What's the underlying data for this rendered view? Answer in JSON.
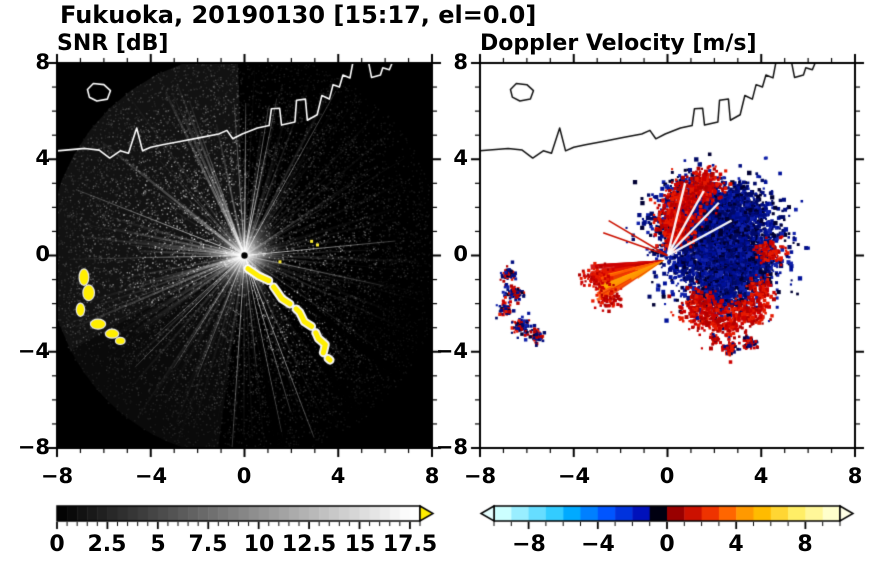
{
  "title": "Fukuoka, 20190130 [15:17, el=0.0]",
  "axes": {
    "x_tick_labels": [
      "−8",
      "−4",
      "0",
      "4",
      "8"
    ],
    "y_tick_labels": [
      "8",
      "4",
      "0",
      "−4",
      "−8"
    ]
  },
  "chart_data": [
    {
      "id": "snr",
      "type": "heatmap",
      "title": "SNR [dB]",
      "xlabel": "",
      "ylabel": "",
      "xlim": [
        -8,
        8
      ],
      "ylim": [
        -8,
        8
      ],
      "x_ticks": [
        -8,
        -4,
        0,
        4,
        8
      ],
      "y_ticks": [
        -8,
        -4,
        0,
        4,
        8
      ],
      "minor_tick_step": 1,
      "units": "dB",
      "description": "Radar SNR PPI scan on black background; radar at origin with bright radial streaks (brightest toward NW sector); saturated yellow echoes along an arc from (0.2,-0.6) to (3.6,-4.3) and small patches near x=-7..-5.2, y=-0.9..-3.6; white coastline overlay across the top of the map",
      "colorbar": {
        "min": 0,
        "max": 18,
        "tick_step": 0.5,
        "label_values": [
          0,
          2.5,
          5,
          7.5,
          10,
          12.5,
          15,
          17.5
        ],
        "labels": [
          "0",
          "2.5",
          "5",
          "7.5",
          "10",
          "12.5",
          "15",
          "17.5"
        ],
        "gradient": [
          "#000000",
          "#ffffff"
        ],
        "over_arrow_color": "#ffee00"
      },
      "render": {
        "background": "#000000",
        "noise_count": 20000,
        "ray_count": 170,
        "bright_sector_deg": [
          92,
          208
        ],
        "dark_wedges_deg": [
          [
            -36,
            -39
          ],
          [
            -52,
            -55
          ],
          [
            -78,
            -81
          ],
          [
            322,
            324
          ]
        ],
        "dim_sector_deg": [
          -33,
          -8
        ],
        "yellow_patches": [
          [
            -6.85,
            -0.9,
            0.18,
            0.32
          ],
          [
            -6.65,
            -1.55,
            0.22,
            0.3
          ],
          [
            -7.0,
            -2.25,
            0.15,
            0.25
          ],
          [
            -6.25,
            -2.85,
            0.3,
            0.18
          ],
          [
            -5.65,
            -3.25,
            0.26,
            0.16
          ],
          [
            -5.3,
            -3.55,
            0.18,
            0.12
          ]
        ],
        "yellow_arc": [
          [
            0.15,
            -0.55
          ],
          [
            0.6,
            -0.85
          ],
          [
            1.05,
            -1.05
          ],
          [
            1.35,
            -1.45
          ],
          [
            1.6,
            -1.8
          ],
          [
            2.0,
            -2.05
          ],
          [
            2.35,
            -2.35
          ],
          [
            2.55,
            -2.75
          ],
          [
            2.95,
            -3.0
          ],
          [
            3.15,
            -3.45
          ],
          [
            3.45,
            -3.7
          ],
          [
            3.35,
            -4.1
          ],
          [
            3.65,
            -4.35
          ]
        ],
        "yellow_flecks": [
          [
            2.8,
            0.65
          ],
          [
            3.05,
            0.5
          ],
          [
            1.45,
            -0.2
          ]
        ]
      }
    },
    {
      "id": "doppler",
      "type": "heatmap",
      "title": "Doppler Velocity [m/s]",
      "xlabel": "",
      "ylabel": "",
      "xlim": [
        -8,
        8
      ],
      "ylim": [
        -8,
        8
      ],
      "x_ticks": [
        -8,
        -4,
        0,
        4,
        8
      ],
      "y_ticks": [
        -8,
        -4,
        0,
        4,
        8
      ],
      "minor_tick_step": 1,
      "units": "m/s",
      "description": "Doppler velocity PPI on white background; negative (dark navy blue) echoes east-northeast of radar with red positive fringes; orange-red positive fan west-southwest of radar reaching x=-3.5; small red/blue patches near x=-7 and along y=-3.5; black coastline overlay",
      "colorbar": {
        "min": -10,
        "max": 10,
        "tick_step": 1,
        "label_values": [
          -8,
          -4,
          0,
          4,
          8
        ],
        "labels": [
          "−8",
          "−4",
          "0",
          "4",
          "8"
        ],
        "segment_colors": [
          "#ccffff",
          "#99eeff",
          "#66ddff",
          "#33ccff",
          "#00aaff",
          "#0080ff",
          "#0055ff",
          "#0033dd",
          "#0011bb",
          "#000011",
          "#990000",
          "#cc1100",
          "#ee3300",
          "#ff6600",
          "#ff9900",
          "#ffbb00",
          "#ffd633",
          "#ffee66",
          "#fff799",
          "#ffffcc"
        ],
        "under_arrow_color": "#e6ffff",
        "over_arrow_color": "#ffffe6"
      },
      "render": {
        "background": "#ffffff",
        "navy_palette": [
          "#000d80",
          "#001199",
          "#000a66",
          "#000033",
          "#1122aa"
        ],
        "red_palette": [
          "#cc0000",
          "#b30000",
          "#e61a00"
        ],
        "orange_palette": [
          "#ff3300",
          "#ff5500",
          "#ff7700",
          "#ff9900",
          "#e63900",
          "#ffaa00"
        ],
        "navy_clusters": [
          [
            2.1,
            0.7,
            1.25,
            2600
          ],
          [
            1.2,
            2.0,
            0.75,
            700
          ],
          [
            3.1,
            -0.4,
            0.7,
            600
          ],
          [
            2.1,
            -1.5,
            0.6,
            420
          ],
          [
            0.9,
            1.1,
            0.5,
            350
          ],
          [
            2.9,
            1.9,
            0.6,
            420
          ]
        ],
        "navy_speckle": [
          2.1,
          0.4,
          2.6,
          260
        ],
        "red_clusters": [
          [
            0.35,
            1.5,
            0.45,
            260
          ],
          [
            0.7,
            2.4,
            0.45,
            230
          ],
          [
            1.5,
            3.0,
            0.4,
            190
          ],
          [
            0.2,
            0.9,
            0.3,
            140
          ],
          [
            1.3,
            -2.2,
            0.45,
            210
          ],
          [
            2.4,
            -2.7,
            0.4,
            170
          ],
          [
            3.5,
            -2.3,
            0.35,
            150
          ],
          [
            4.3,
            0.2,
            0.3,
            90
          ],
          [
            3.9,
            -1.4,
            0.3,
            90
          ]
        ],
        "fan": {
          "origin": [
            -0.15,
            -0.2
          ],
          "angle_deg": [
            184,
            214
          ],
          "length": [
            1.1,
            3.4
          ],
          "count": 64
        },
        "fan_fringe": [
          [
            -3.1,
            -0.9,
            0.3,
            90
          ],
          [
            -2.5,
            -1.8,
            0.28,
            70
          ]
        ],
        "white_rays_deg": [
          28,
          45,
          60,
          76
        ],
        "red_rays_deg": [
          150,
          161
        ],
        "left_patches": [
          [
            -6.85,
            -0.75,
            0.16,
            70
          ],
          [
            -6.6,
            -1.5,
            0.2,
            90
          ],
          [
            -7.0,
            -2.2,
            0.14,
            55
          ],
          [
            -6.3,
            -2.9,
            0.22,
            80
          ],
          [
            -5.7,
            -3.3,
            0.18,
            60
          ]
        ],
        "bottom_patches": [
          [
            2.6,
            -3.8,
            0.18,
            70
          ],
          [
            3.45,
            -3.6,
            0.16,
            60
          ],
          [
            1.95,
            -3.4,
            0.1,
            30
          ]
        ]
      }
    }
  ],
  "coastline": [
    [
      [
        -6.7,
        6.9
      ],
      [
        -6.45,
        7.15
      ],
      [
        -6.0,
        7.1
      ],
      [
        -5.72,
        6.85
      ],
      [
        -5.85,
        6.5
      ],
      [
        -6.3,
        6.42
      ],
      [
        -6.62,
        6.58
      ],
      [
        -6.7,
        6.9
      ]
    ],
    [
      [
        -8,
        4.35
      ],
      [
        -6.8,
        4.45
      ],
      [
        -6.2,
        4.38
      ],
      [
        -5.75,
        4.05
      ],
      [
        -5.3,
        4.35
      ],
      [
        -4.95,
        4.25
      ],
      [
        -4.6,
        5.3
      ],
      [
        -4.35,
        4.35
      ],
      [
        -4.0,
        4.5
      ],
      [
        -3.5,
        4.6
      ],
      [
        -2.7,
        4.75
      ],
      [
        -1.9,
        4.9
      ],
      [
        -1.1,
        5.05
      ],
      [
        -0.75,
        5.2
      ],
      [
        -0.5,
        4.85
      ],
      [
        -0.1,
        5.05
      ],
      [
        0.55,
        5.3
      ],
      [
        1.05,
        5.4
      ],
      [
        1.15,
        6.1
      ],
      [
        1.5,
        6.12
      ],
      [
        1.58,
        5.42
      ],
      [
        2.15,
        5.55
      ],
      [
        2.22,
        6.45
      ],
      [
        2.6,
        6.5
      ],
      [
        2.68,
        5.62
      ],
      [
        3.1,
        5.85
      ],
      [
        3.3,
        6.65
      ],
      [
        3.62,
        6.5
      ],
      [
        3.78,
        7.1
      ],
      [
        4.05,
        7.0
      ],
      [
        4.2,
        7.5
      ],
      [
        4.5,
        7.38
      ],
      [
        4.62,
        8.0
      ]
    ],
    [
      [
        5.3,
        8.0
      ],
      [
        5.42,
        7.4
      ],
      [
        5.8,
        7.5
      ],
      [
        5.9,
        7.8
      ],
      [
        6.18,
        7.72
      ],
      [
        6.3,
        8.0
      ]
    ]
  ]
}
